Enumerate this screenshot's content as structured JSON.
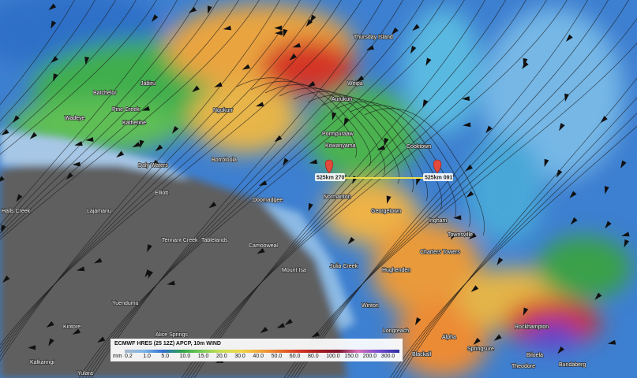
{
  "markers": [
    {
      "label": "525km 270°"
    },
    {
      "label": "525km 091°"
    }
  ],
  "places": [
    "Thursday Island",
    "Weipa",
    "Aurukun",
    "Pormpuraaw",
    "Kowanyama",
    "Cooktown",
    "Normanton",
    "Georgetown",
    "Doomadgee",
    "Borroloola",
    "Ngukurr",
    "Katherine",
    "Pine Creek",
    "Batchelor",
    "Jabiru",
    "Wadeye",
    "Daly Waters",
    "Elliott",
    "Lajamanu",
    "Halls Creek",
    "Tennant Creek",
    "Tablelands",
    "Camooweal",
    "Mount Isa",
    "Julia Creek",
    "Hughenden",
    "Charters Towers",
    "Ingham",
    "Townsville",
    "Winton",
    "Longreach",
    "Alpha",
    "Springsure",
    "Blackall",
    "Rockhampton",
    "Biloela",
    "Bundaberg",
    "Theodore",
    "Alice Springs",
    "Yuendumu",
    "Kintore",
    "Kalkaringi",
    "Yulara"
  ],
  "legend": {
    "title": "ECMWF HRES (25 12Z) APCP, 10m WIND",
    "unit": "mm",
    "ticks": [
      "0.2",
      "1.0",
      "5.0",
      "10.0",
      "15.0",
      "20.0",
      "30.0",
      "40.0",
      "50.0",
      "60.0",
      "80.0",
      "100.0",
      "150.0",
      "200.0",
      "300.0"
    ]
  }
}
